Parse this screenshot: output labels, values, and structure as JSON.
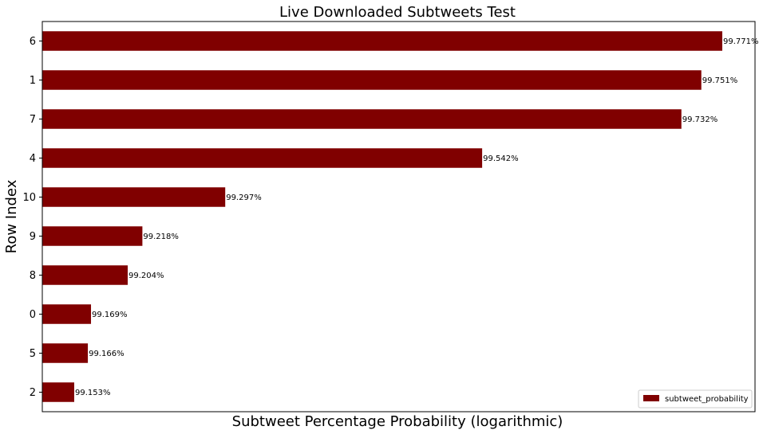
{
  "chart_data": {
    "type": "bar",
    "orientation": "horizontal",
    "title": "Live Downloaded Subtweets Test",
    "xlabel": "Subtweet Percentage Probability (logarithmic)",
    "ylabel": "Row Index",
    "x_scale": "log",
    "x_ticks_visible": false,
    "grid": false,
    "legend_position": "bottom-right",
    "bar_color": "#800000",
    "categories": [
      "6",
      "1",
      "7",
      "4",
      "10",
      "9",
      "8",
      "0",
      "5",
      "2"
    ],
    "series": [
      {
        "name": "subtweet_probability",
        "values": [
          99.771,
          99.751,
          99.732,
          99.542,
          99.297,
          99.218,
          99.204,
          99.169,
          99.166,
          99.153
        ],
        "labels": [
          "99.771%",
          "99.751%",
          "99.732%",
          "99.542%",
          "99.297%",
          "99.218%",
          "99.204%",
          "99.169%",
          "99.166%",
          "99.153%"
        ]
      }
    ]
  }
}
